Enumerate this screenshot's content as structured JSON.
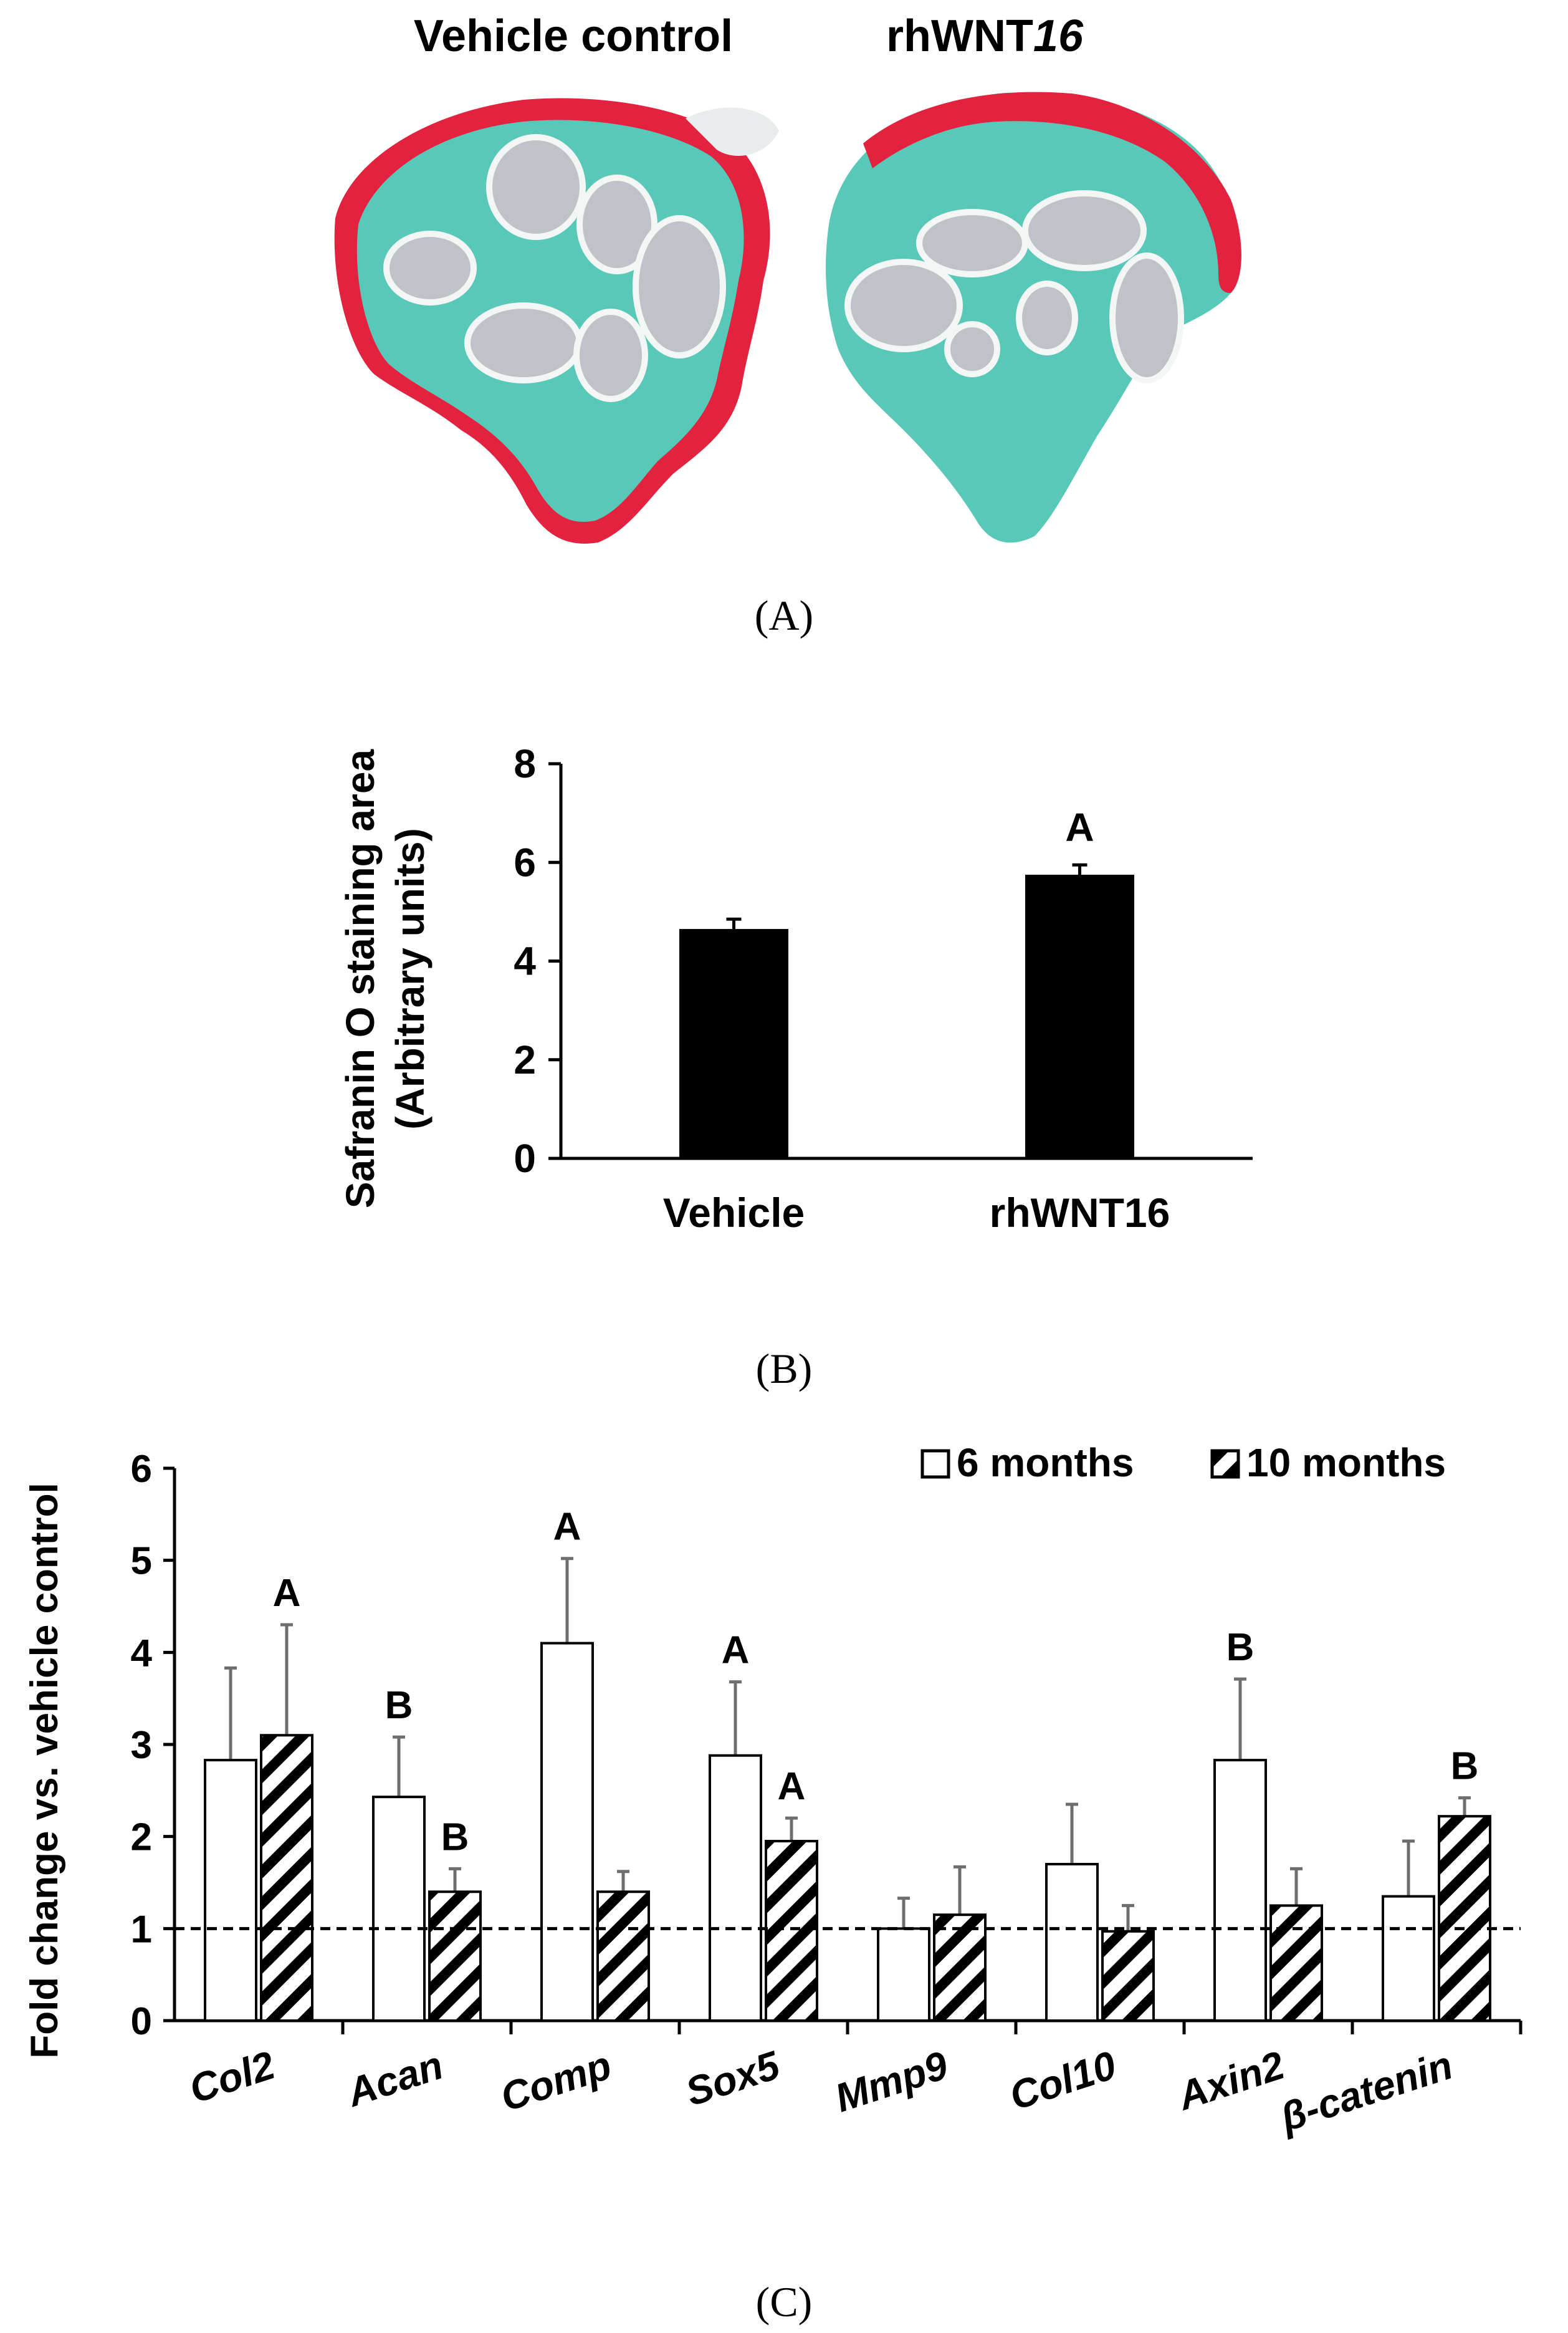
{
  "panel_a": {
    "label": "(A)",
    "left_title": "Vehicle control",
    "right_title_prefix": "rhWNT",
    "right_title_suffix": "16",
    "colors": {
      "cartilage_red": "#e2223f",
      "matrix_teal": "#58c8b8",
      "marrow_gray": "#bfc3c8"
    }
  },
  "panel_b": {
    "label": "(B)",
    "ylabel_line1": "Safranin O staining area",
    "ylabel_line2": "(Arbitrary units)"
  },
  "panel_c": {
    "label": "(C)",
    "ylabel": "Fold change vs. vehicle control",
    "legend": [
      "6 months",
      "10 months"
    ]
  },
  "chart_data": [
    {
      "type": "bar",
      "categories": [
        "Vehicle",
        "rhWNT16"
      ],
      "values": [
        4.65,
        5.75
      ],
      "errors": [
        0.2,
        0.2
      ],
      "annotations": [
        "",
        "A"
      ],
      "ylim": [
        0,
        8
      ],
      "yticks": [
        0,
        2,
        4,
        6,
        8
      ],
      "xlabel": "",
      "ylabel": "Safranin O staining area (Arbitrary units)",
      "colors": [
        "#000000"
      ],
      "legend": "none"
    },
    {
      "type": "bar",
      "categories": [
        "Col2",
        "Acan",
        "Comp",
        "Sox5",
        "Mmp9",
        "Col10",
        "Axin2",
        "β-catenin"
      ],
      "series": [
        {
          "name": "6 months",
          "values": [
            2.83,
            2.43,
            4.1,
            2.88,
            1.0,
            1.7,
            2.83,
            1.35
          ],
          "errors": [
            1.0,
            0.65,
            0.92,
            0.8,
            0.33,
            0.65,
            0.88,
            0.6
          ],
          "annotations": [
            "",
            "B",
            "A",
            "A",
            "",
            "",
            "B",
            ""
          ],
          "fill": "open"
        },
        {
          "name": "10 months",
          "values": [
            3.1,
            1.4,
            1.4,
            1.95,
            1.15,
            0.97,
            1.25,
            2.22
          ],
          "errors": [
            1.2,
            0.25,
            0.22,
            0.25,
            0.52,
            0.28,
            0.4,
            0.2
          ],
          "annotations": [
            "A",
            "B",
            "",
            "A",
            "",
            "",
            "",
            "B"
          ],
          "fill": "hatched"
        }
      ],
      "reference_line": 1,
      "ylim": [
        0,
        6
      ],
      "yticks": [
        0,
        1,
        2,
        3,
        4,
        5,
        6
      ],
      "xlabel": "",
      "ylabel": "Fold change vs. vehicle control",
      "legend": "top-right"
    }
  ]
}
